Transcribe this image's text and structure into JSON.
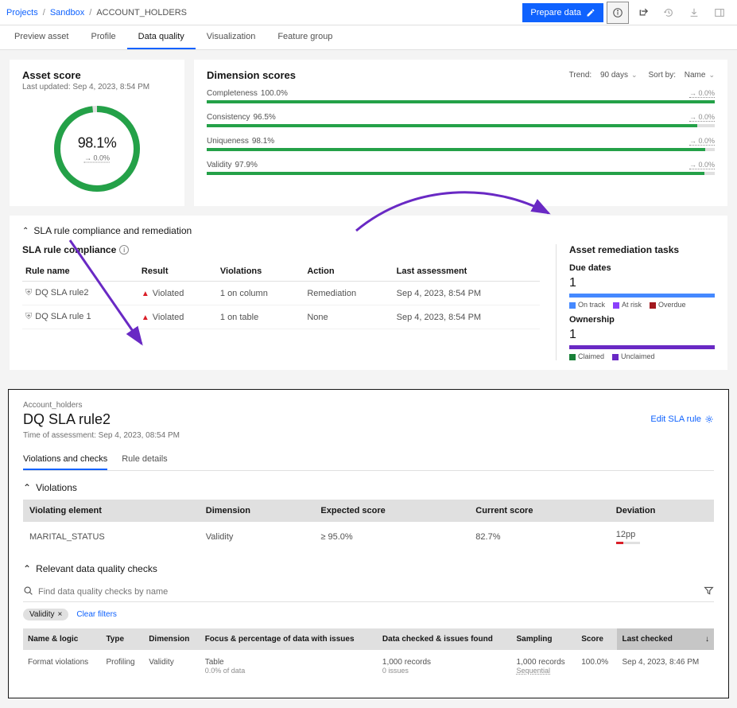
{
  "breadcrumb": {
    "l1": "Projects",
    "l2": "Sandbox",
    "current": "ACCOUNT_HOLDERS"
  },
  "topbar": {
    "prepare": "Prepare data"
  },
  "tabs": {
    "preview": "Preview asset",
    "profile": "Profile",
    "dq": "Data quality",
    "viz": "Visualization",
    "fg": "Feature group"
  },
  "assetScore": {
    "title": "Asset score",
    "updated": "Last updated: Sep 4, 2023, 8:54 PM",
    "pct": "98.1%",
    "delta": "→ 0.0%",
    "ring_color": "#24a148",
    "ring_pct": 98.1
  },
  "dimScores": {
    "title": "Dimension scores",
    "trend_label": "Trend:",
    "trend_value": "90 days",
    "sort_label": "Sort by:",
    "sort_value": "Name",
    "bar_color": "#24a148",
    "rows": [
      {
        "name": "Completeness",
        "val": "100.0%",
        "delta": "→ 0.0%",
        "pct": 100
      },
      {
        "name": "Consistency",
        "val": "96.5%",
        "delta": "→ 0.0%",
        "pct": 96.5
      },
      {
        "name": "Uniqueness",
        "val": "98.1%",
        "delta": "→ 0.0%",
        "pct": 98.1
      },
      {
        "name": "Validity",
        "val": "97.9%",
        "delta": "→ 0.0%",
        "pct": 97.9
      }
    ]
  },
  "sla": {
    "title": "SLA rule compliance and remediation",
    "compliance_title": "SLA rule compliance",
    "cols": {
      "rule": "Rule name",
      "result": "Result",
      "violations": "Violations",
      "action": "Action",
      "last": "Last assessment"
    },
    "rows": [
      {
        "rule": "DQ SLA rule2",
        "result": "Violated",
        "violations": "1 on column",
        "action": "Remediation",
        "last": "Sep 4, 2023, 8:54 PM"
      },
      {
        "rule": "DQ SLA rule 1",
        "result": "Violated",
        "violations": "1 on table",
        "action": "None",
        "last": "Sep 4, 2023, 8:54 PM"
      }
    ],
    "tasks": {
      "title": "Asset remediation tasks",
      "due_label": "Due dates",
      "due_count": "1",
      "due_bar_color": "#4589ff",
      "due_legend": [
        {
          "label": "On track",
          "color": "#4589ff"
        },
        {
          "label": "At risk",
          "color": "#8a3ffc"
        },
        {
          "label": "Overdue",
          "color": "#a2191f"
        }
      ],
      "own_label": "Ownership",
      "own_count": "1",
      "own_bar_color": "#6929c4",
      "own_legend": [
        {
          "label": "Claimed",
          "color": "#198038"
        },
        {
          "label": "Unclaimed",
          "color": "#6929c4"
        }
      ]
    }
  },
  "detail": {
    "crumb": "Account_holders",
    "title": "DQ SLA rule2",
    "ts": "Time of assessment: Sep 4, 2023, 08:54 PM",
    "edit": "Edit SLA rule",
    "tabs": {
      "vc": "Violations and checks",
      "rd": "Rule details"
    },
    "violations": {
      "title": "Violations",
      "cols": {
        "el": "Violating element",
        "dim": "Dimension",
        "exp": "Expected score",
        "cur": "Current score",
        "dev": "Deviation"
      },
      "row": {
        "el": "MARITAL_STATUS",
        "dim": "Validity",
        "exp": "≥ 95.0%",
        "cur": "82.7%",
        "dev": "12pp",
        "dev_pct": 30,
        "dev_color": "#da1e28"
      }
    },
    "checks": {
      "title": "Relevant data quality checks",
      "search_placeholder": "Find data quality checks by name",
      "chip": "Validity",
      "clear": "Clear filters",
      "cols": {
        "name": "Name & logic",
        "type": "Type",
        "dim": "Dimension",
        "focus": "Focus & percentage of data with issues",
        "data": "Data checked & issues found",
        "sampling": "Sampling",
        "score": "Score",
        "last": "Last checked"
      },
      "row": {
        "name": "Format violations",
        "type": "Profiling",
        "dim": "Validity",
        "focus1": "Table",
        "focus2": "0.0% of data",
        "data1": "1,000 records",
        "data2": "0 issues",
        "samp1": "1,000 records",
        "samp2": "Sequential",
        "score": "100.0%",
        "last": "Sep 4, 2023, 8:46 PM"
      }
    }
  },
  "arrows": {
    "color": "#6929c4"
  }
}
